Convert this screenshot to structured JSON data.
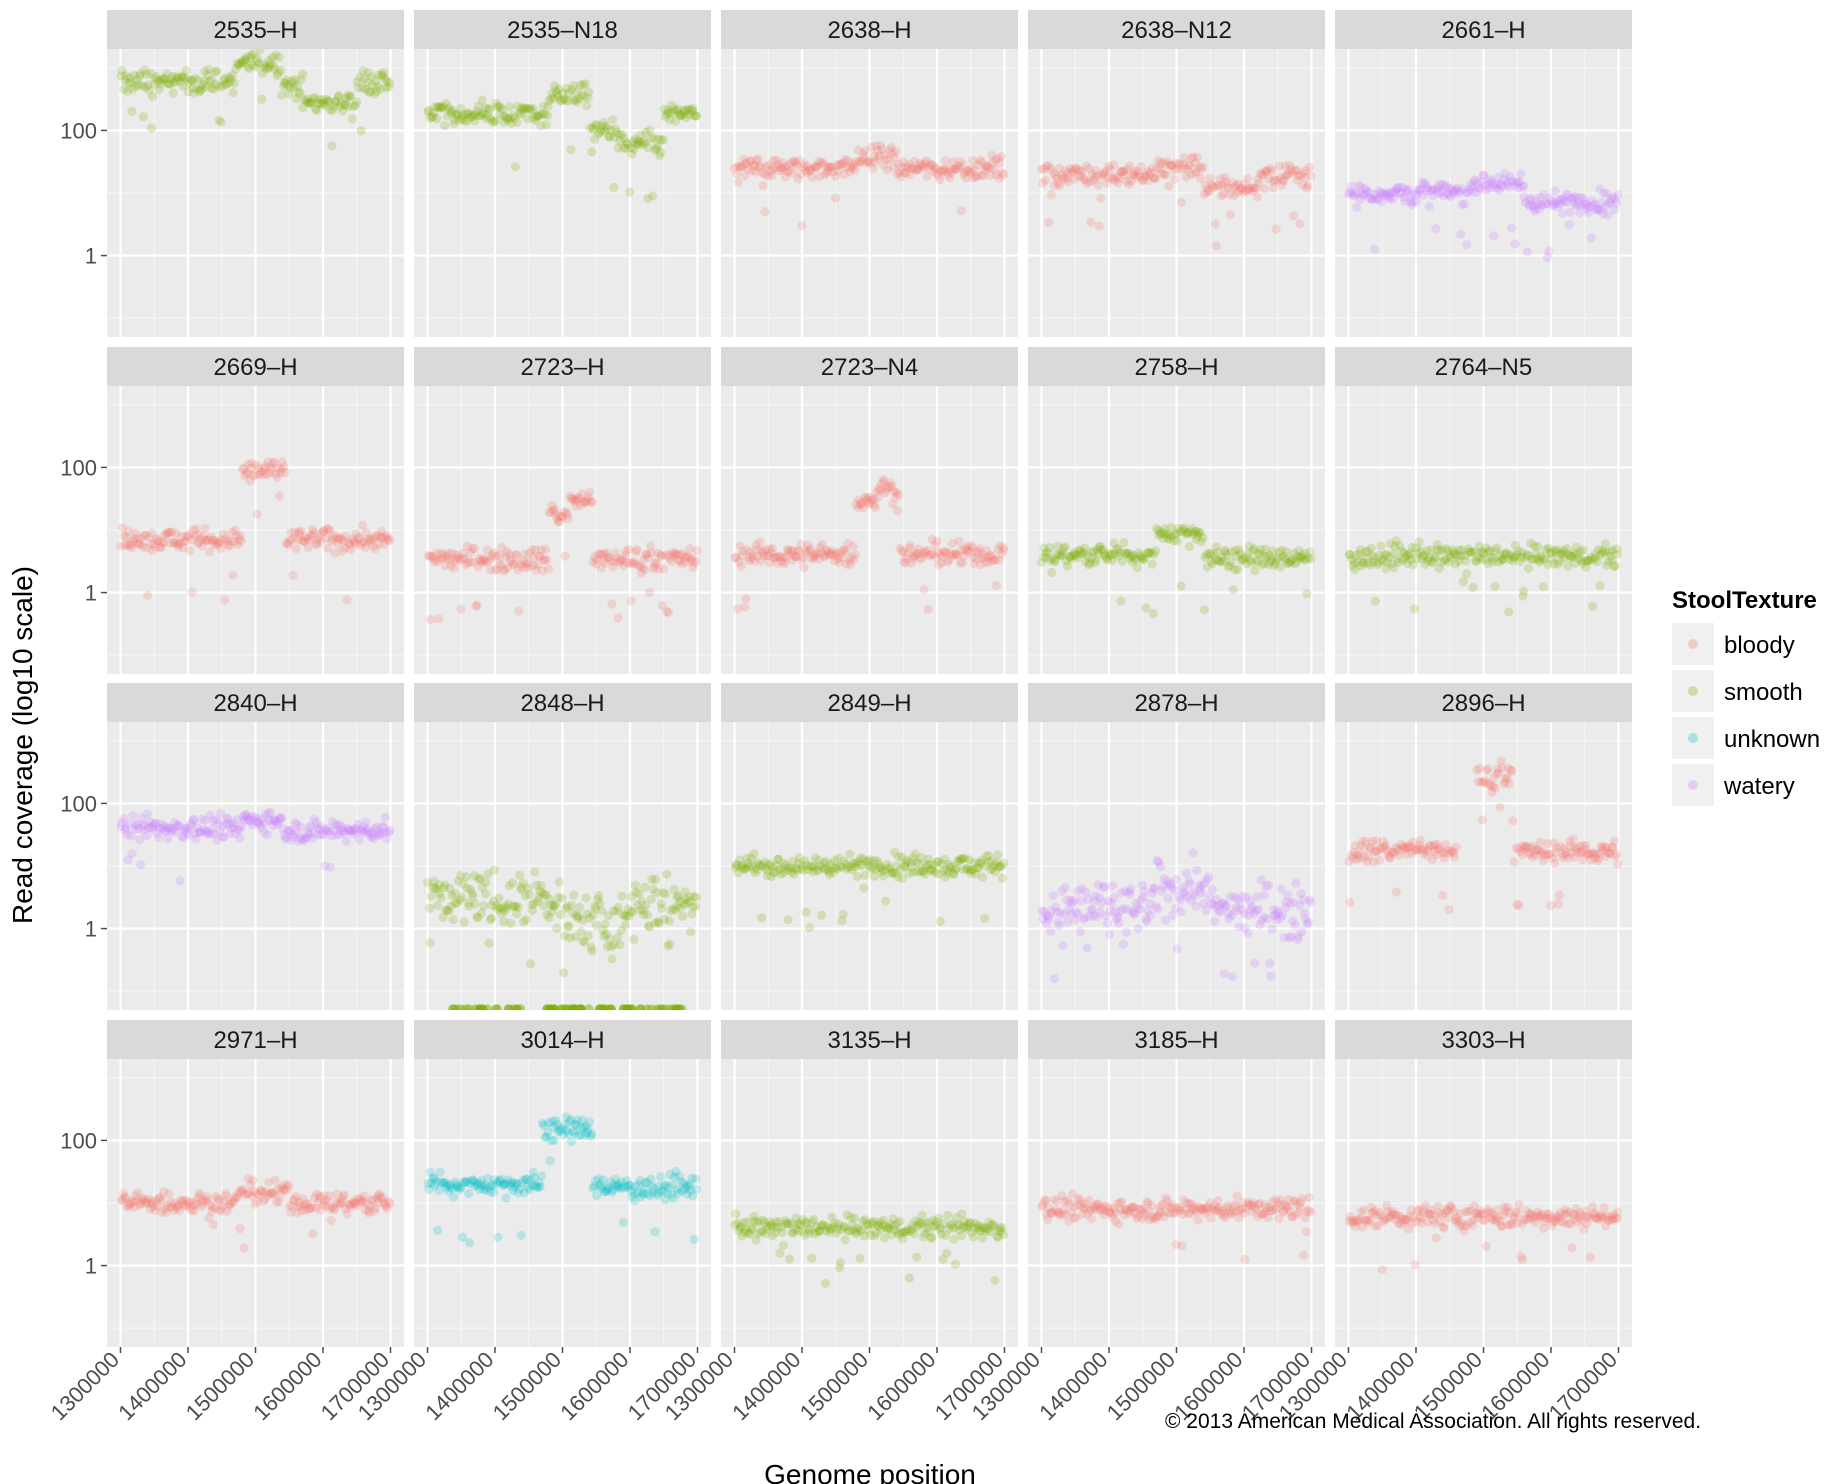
{
  "chart_data": {
    "type": "scatter",
    "title": "",
    "xlabel": "Genome position",
    "ylabel": "Read coverage (log10 scale)",
    "y_scale": "log10",
    "ylim": [
      0.05,
      2000
    ],
    "xlim": [
      1280000,
      1720000
    ],
    "x_ticks": [
      1300000,
      1400000,
      1500000,
      1600000,
      1700000
    ],
    "x_tick_labels": [
      "1300000",
      "1400000",
      "1500000",
      "1600000",
      "1700000"
    ],
    "y_ticks": [
      1,
      100
    ],
    "y_tick_labels": [
      "1",
      "100"
    ],
    "grid": true,
    "facet_layout": {
      "rows": 4,
      "cols": 5
    },
    "legend": {
      "title": "StoolTexture",
      "position": "right",
      "entries": [
        {
          "label": "bloody",
          "color": "#F8766D"
        },
        {
          "label": "smooth",
          "color": "#7CAE00"
        },
        {
          "label": "unknown",
          "color": "#00BFC4"
        },
        {
          "label": "watery",
          "color": "#C77CFF"
        }
      ]
    },
    "panels": [
      {
        "label": "2535–H",
        "texture": "smooth",
        "segments": [
          {
            "x": [
              1300000,
              1470000
            ],
            "y": 600
          },
          {
            "x": [
              1470000,
              1540000
            ],
            "y": 1200
          },
          {
            "x": [
              1540000,
              1570000
            ],
            "y": 550
          },
          {
            "x": [
              1570000,
              1610000
            ],
            "y": 280
          },
          {
            "x": [
              1610000,
              1650000
            ],
            "y": 280
          },
          {
            "x": [
              1650000,
              1700000
            ],
            "y": 600
          }
        ]
      },
      {
        "label": "2535–N18",
        "texture": "smooth",
        "segments": [
          {
            "x": [
              1300000,
              1480000
            ],
            "y": 180
          },
          {
            "x": [
              1480000,
              1540000
            ],
            "y": 380
          },
          {
            "x": [
              1540000,
              1580000
            ],
            "y": 100
          },
          {
            "x": [
              1580000,
              1650000
            ],
            "y": 60
          },
          {
            "x": [
              1650000,
              1700000
            ],
            "y": 180
          }
        ]
      },
      {
        "label": "2638–H",
        "texture": "bloody",
        "segments": [
          {
            "x": [
              1300000,
              1480000
            ],
            "y": 25
          },
          {
            "x": [
              1480000,
              1540000
            ],
            "y": 38
          },
          {
            "x": [
              1540000,
              1700000
            ],
            "y": 25
          }
        ]
      },
      {
        "label": "2638–N12",
        "texture": "bloody",
        "segments": [
          {
            "x": [
              1300000,
              1470000
            ],
            "y": 20
          },
          {
            "x": [
              1470000,
              1540000
            ],
            "y": 26
          },
          {
            "x": [
              1540000,
              1620000
            ],
            "y": 12
          },
          {
            "x": [
              1620000,
              1700000
            ],
            "y": 18
          }
        ]
      },
      {
        "label": "2661–H",
        "texture": "watery",
        "segments": [
          {
            "x": [
              1300000,
              1480000
            ],
            "y": 10
          },
          {
            "x": [
              1480000,
              1560000
            ],
            "y": 15
          },
          {
            "x": [
              1560000,
              1700000
            ],
            "y": 7
          }
        ]
      },
      {
        "label": "2669–H",
        "texture": "bloody",
        "segments": [
          {
            "x": [
              1300000,
              1480000
            ],
            "y": 7
          },
          {
            "x": [
              1480000,
              1545000
            ],
            "y": 85
          },
          {
            "x": [
              1545000,
              1700000
            ],
            "y": 7
          }
        ]
      },
      {
        "label": "2723–H",
        "texture": "bloody",
        "segments": [
          {
            "x": [
              1300000,
              1480000
            ],
            "y": 3.5
          },
          {
            "x": [
              1480000,
              1510000
            ],
            "y": 18
          },
          {
            "x": [
              1510000,
              1545000
            ],
            "y": 28
          },
          {
            "x": [
              1545000,
              1700000
            ],
            "y": 3.5
          }
        ]
      },
      {
        "label": "2723–N4",
        "texture": "bloody",
        "segments": [
          {
            "x": [
              1300000,
              1480000
            ],
            "y": 4
          },
          {
            "x": [
              1480000,
              1510000
            ],
            "y": 30
          },
          {
            "x": [
              1510000,
              1545000
            ],
            "y": 45
          },
          {
            "x": [
              1545000,
              1700000
            ],
            "y": 4
          }
        ]
      },
      {
        "label": "2758–H",
        "texture": "smooth",
        "segments": [
          {
            "x": [
              1300000,
              1470000
            ],
            "y": 4
          },
          {
            "x": [
              1470000,
              1540000
            ],
            "y": 9
          },
          {
            "x": [
              1540000,
              1700000
            ],
            "y": 3.5
          }
        ]
      },
      {
        "label": "2764–N5",
        "texture": "smooth",
        "segments": [
          {
            "x": [
              1300000,
              1700000
            ],
            "y": 3.8
          }
        ]
      },
      {
        "label": "2840–H",
        "texture": "watery",
        "segments": [
          {
            "x": [
              1300000,
              1480000
            ],
            "y": 40
          },
          {
            "x": [
              1480000,
              1540000
            ],
            "y": 55
          },
          {
            "x": [
              1540000,
              1700000
            ],
            "y": 37
          }
        ]
      },
      {
        "label": "2848–H",
        "texture": "smooth",
        "segments": [
          {
            "x": [
              1300000,
              1500000
            ],
            "y": 3
          },
          {
            "x": [
              1500000,
              1600000
            ],
            "y": 1.2
          },
          {
            "x": [
              1600000,
              1700000
            ],
            "y": 2.5
          }
        ]
      },
      {
        "label": "2849–H",
        "texture": "smooth",
        "segments": [
          {
            "x": [
              1300000,
              1700000
            ],
            "y": 10
          }
        ]
      },
      {
        "label": "2878–H",
        "texture": "watery",
        "segments": [
          {
            "x": [
              1300000,
              1470000
            ],
            "y": 2
          },
          {
            "x": [
              1470000,
              1550000
            ],
            "y": 4.5
          },
          {
            "x": [
              1550000,
              1700000
            ],
            "y": 2
          }
        ]
      },
      {
        "label": "2896–H",
        "texture": "bloody",
        "segments": [
          {
            "x": [
              1300000,
              1460000
            ],
            "y": 18
          },
          {
            "x": [
              1490000,
              1520000
            ],
            "y": 260
          },
          {
            "x": [
              1520000,
              1545000
            ],
            "y": 300
          },
          {
            "x": [
              1545000,
              1700000
            ],
            "y": 17
          }
        ]
      },
      {
        "label": "2971–H",
        "texture": "bloody",
        "segments": [
          {
            "x": [
              1300000,
              1470000
            ],
            "y": 10
          },
          {
            "x": [
              1470000,
              1550000
            ],
            "y": 14
          },
          {
            "x": [
              1550000,
              1700000
            ],
            "y": 10
          }
        ]
      },
      {
        "label": "3014–H",
        "texture": "unknown",
        "segments": [
          {
            "x": [
              1300000,
              1470000
            ],
            "y": 20
          },
          {
            "x": [
              1470000,
              1545000
            ],
            "y": 150
          },
          {
            "x": [
              1545000,
              1700000
            ],
            "y": 18
          }
        ]
      },
      {
        "label": "3135–H",
        "texture": "smooth",
        "segments": [
          {
            "x": [
              1300000,
              1700000
            ],
            "y": 4
          }
        ]
      },
      {
        "label": "3185–H",
        "texture": "bloody",
        "segments": [
          {
            "x": [
              1300000,
              1700000
            ],
            "y": 8
          }
        ]
      },
      {
        "label": "3303–H",
        "texture": "bloody",
        "segments": [
          {
            "x": [
              1300000,
              1700000
            ],
            "y": 6
          }
        ]
      }
    ]
  },
  "copyright": "© 2013 American Medical Association. All rights reserved."
}
